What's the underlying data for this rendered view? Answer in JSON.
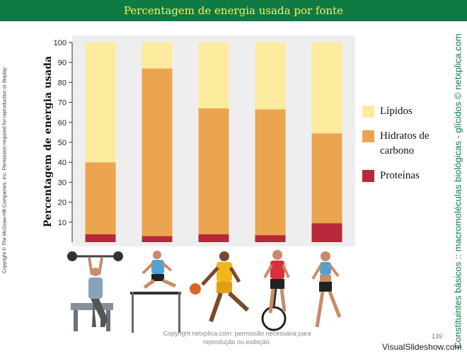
{
  "header": {
    "title": "Percentagem de energia usada por fonte"
  },
  "chart_data": {
    "type": "bar",
    "stacked": true,
    "categories": [
      "Levantamento de peso",
      "Corrida com barreiras",
      "Basquetebol",
      "Ciclismo",
      "Corrida"
    ],
    "ylabel": "Percentagem de energia usada",
    "ylim": [
      0,
      100
    ],
    "yticks": [
      10,
      20,
      30,
      40,
      50,
      60,
      70,
      80,
      90,
      100
    ],
    "legend_position": "right",
    "series": [
      {
        "name": "Proteínas",
        "color": "#b8283a",
        "values": [
          4,
          3,
          4,
          3.5,
          9.5
        ]
      },
      {
        "name": "Hidratos de carbono",
        "color": "#eba54e",
        "values": [
          36,
          84,
          63,
          63,
          45
        ]
      },
      {
        "name": "Lípidos",
        "color": "#fdeb9d",
        "values": [
          60,
          13,
          33,
          33.5,
          45.5
        ]
      }
    ]
  },
  "legend": [
    {
      "label": "Lípidos",
      "color": "#fdeb9d"
    },
    {
      "label": "Hidratos de carbono",
      "color": "#eba54e"
    },
    {
      "label": "Proteínas",
      "color": "#b8283a"
    }
  ],
  "side_text_left": "Copyright © The McGraw-Hill Companies, Inc. Permission required for reproduction or display.",
  "side_text_right": "Constituintes básicos :: macromoléculas biológicas - glícidos © netxplica.com",
  "watermark": "Copyright netxplica.com: permissão necessária para reprodução ou exibição.",
  "page_number": "139",
  "site": "VisualSlideshow.com"
}
